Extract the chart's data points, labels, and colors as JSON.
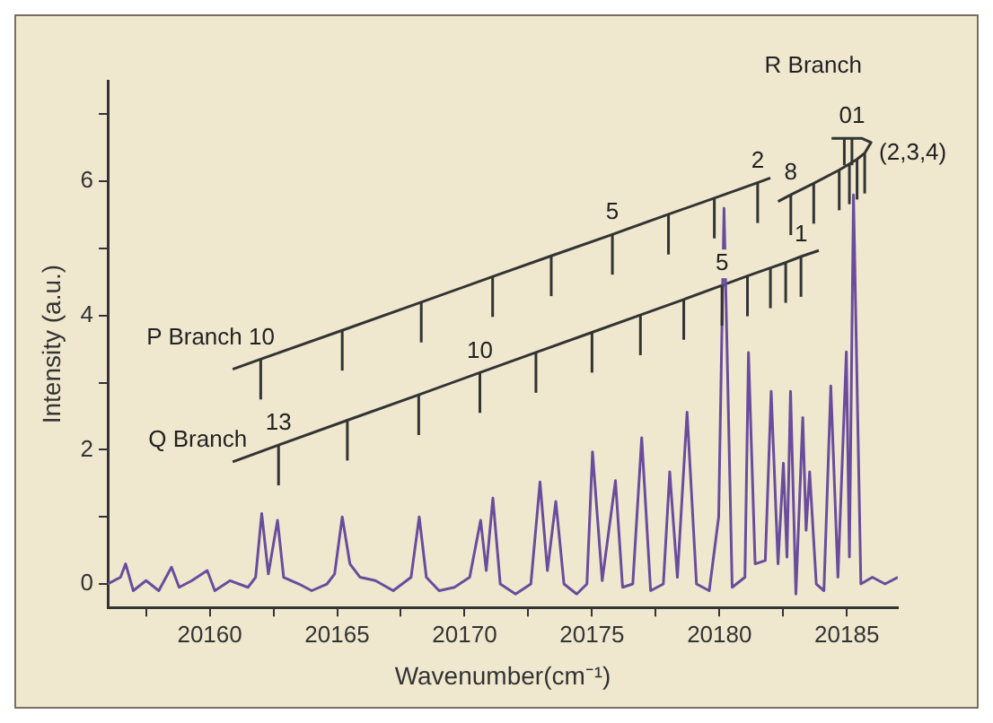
{
  "chart_data": {
    "type": "line",
    "xlabel": "Wavenumber(cm⁻¹)",
    "ylabel": "Intensity (a.u.)",
    "xlim": [
      20156,
      20187
    ],
    "ylim": [
      -0.35,
      7.5
    ],
    "xticks": [
      {
        "value": 20157.5,
        "label": null
      },
      20160,
      {
        "value": 20162.5,
        "label": null
      },
      20165,
      {
        "value": 20167.5,
        "label": null
      },
      20170,
      {
        "value": 20172.5,
        "label": null
      },
      20175,
      {
        "value": 20177.5,
        "label": null
      },
      20180,
      {
        "value": 20182.5,
        "label": null
      },
      20185
    ],
    "yticks": [
      0,
      {
        "value": 1,
        "label": null
      },
      2,
      {
        "value": 3,
        "label": null
      },
      4,
      {
        "value": 5,
        "label": null
      },
      6,
      {
        "value": 7,
        "label": null
      }
    ],
    "series": [
      {
        "color": "#6a4c9c",
        "x": [
          20156.0,
          20156.5,
          20156.7,
          20157.0,
          20157.5,
          20158.0,
          20158.5,
          20158.8,
          20159.3,
          20159.9,
          20160.2,
          20160.8,
          20161.5,
          20161.8,
          20162.04,
          20162.3,
          20162.66,
          20162.9,
          20163.5,
          20164.0,
          20164.6,
          20164.9,
          20165.2,
          20165.5,
          20165.9,
          20166.5,
          20167.2,
          20167.9,
          20168.22,
          20168.5,
          20169.0,
          20169.6,
          20170.2,
          20170.63,
          20170.85,
          20171.11,
          20171.4,
          20172.0,
          20172.6,
          20172.96,
          20173.25,
          20173.58,
          20173.9,
          20174.4,
          20174.8,
          20175.02,
          20175.4,
          20175.92,
          20176.2,
          20176.6,
          20176.95,
          20177.3,
          20177.8,
          20178.05,
          20178.35,
          20178.73,
          20179.1,
          20179.6,
          20179.97,
          20180.18,
          20180.5,
          20181.0,
          20181.14,
          20181.4,
          20181.8,
          20182.03,
          20182.3,
          20182.51,
          20182.65,
          20182.79,
          20183.0,
          20183.27,
          20183.4,
          20183.54,
          20183.8,
          20184.1,
          20184.37,
          20184.65,
          20184.98,
          20185.1,
          20185.26,
          20185.55,
          20186.0,
          20186.5,
          20187.0
        ],
        "values": [
          0.0,
          0.1,
          0.3,
          -0.1,
          0.05,
          -0.1,
          0.25,
          -0.05,
          0.05,
          0.2,
          -0.1,
          0.05,
          -0.05,
          0.1,
          1.05,
          0.15,
          0.95,
          0.1,
          0.0,
          -0.1,
          0.0,
          0.15,
          1.0,
          0.3,
          0.1,
          0.05,
          -0.1,
          0.1,
          1.0,
          0.1,
          -0.1,
          -0.05,
          0.1,
          0.95,
          0.2,
          1.28,
          0.0,
          -0.15,
          0.0,
          1.52,
          0.2,
          1.23,
          0.0,
          -0.15,
          0.0,
          1.97,
          0.05,
          1.54,
          -0.05,
          0.0,
          2.18,
          -0.1,
          0.0,
          1.67,
          0.1,
          2.56,
          0.0,
          -0.1,
          1.0,
          5.6,
          -0.05,
          0.1,
          3.45,
          0.3,
          0.35,
          2.87,
          0.3,
          1.8,
          0.4,
          2.87,
          -0.15,
          2.48,
          0.8,
          1.67,
          0.0,
          -0.1,
          2.95,
          0.1,
          3.46,
          0.4,
          5.8,
          0.0,
          0.1,
          0.0,
          0.1
        ]
      },
      {
        "color": "#333333",
        "x": [
          20160.9,
          20162.0,
          20165.2,
          20168.3,
          20171.1,
          20173.4,
          20175.8,
          20178.0,
          20179.8,
          20181.5,
          20182.0
        ],
        "values": [
          3.2,
          3.35,
          3.78,
          4.2,
          4.58,
          4.89,
          5.21,
          5.51,
          5.75,
          5.98,
          6.05
        ],
        "errors": [
          null,
          [
            2.75,
            3.35
          ],
          [
            3.18,
            3.78
          ],
          [
            3.6,
            4.2
          ],
          [
            3.98,
            4.58
          ],
          [
            4.29,
            4.89
          ],
          [
            4.61,
            5.21
          ],
          [
            4.91,
            5.51
          ],
          [
            5.15,
            5.75
          ],
          [
            5.38,
            5.98
          ],
          null
        ]
      },
      {
        "color": "#333333",
        "x": [
          20160.9,
          20162.7,
          20165.4,
          20168.2,
          20170.6,
          20172.8,
          20175.0,
          20176.9,
          20178.6,
          20180.1,
          20181.1,
          20182.0,
          20182.6,
          20183.2,
          20183.9
        ],
        "values": [
          1.82,
          2.07,
          2.44,
          2.82,
          3.15,
          3.45,
          3.75,
          4.01,
          4.24,
          4.45,
          4.59,
          4.71,
          4.79,
          4.88,
          4.97
        ],
        "errors": [
          null,
          [
            1.47,
            2.07
          ],
          [
            1.84,
            2.44
          ],
          [
            2.22,
            2.82
          ],
          [
            2.55,
            3.15
          ],
          [
            2.85,
            3.45
          ],
          [
            3.15,
            3.75
          ],
          [
            3.41,
            4.01
          ],
          [
            3.64,
            4.24
          ],
          [
            3.85,
            4.45
          ],
          [
            3.99,
            4.59
          ],
          [
            4.11,
            4.71
          ],
          [
            4.19,
            4.79
          ],
          [
            4.28,
            4.88
          ],
          null
        ]
      },
      {
        "color": "#333333",
        "x": [
          20182.3,
          20182.8,
          20183.7,
          20184.7,
          20185.1,
          20185.4,
          20185.7,
          20185.95,
          20185.6,
          20185.2,
          20184.9,
          20184.4
        ],
        "values": [
          5.7,
          5.8,
          5.97,
          6.17,
          6.26,
          6.33,
          6.42,
          6.58,
          6.64,
          6.64,
          6.64,
          6.64
        ],
        "errors": [
          null,
          [
            5.2,
            5.8
          ],
          [
            5.37,
            5.97
          ],
          [
            5.57,
            6.17
          ],
          [
            5.66,
            6.26
          ],
          [
            5.73,
            6.33
          ],
          [
            5.82,
            6.42
          ],
          null,
          null,
          [
            6.24,
            6.64
          ],
          [
            6.24,
            6.64
          ],
          null
        ]
      }
    ],
    "annotations": [
      {
        "text": "P Branch 10",
        "x": 20162.0,
        "y": 3.35
      },
      {
        "text": "5",
        "x": 20175.8,
        "y": 5.21
      },
      {
        "text": "2",
        "x": 20181.5,
        "y": 5.98
      },
      {
        "text": "Q Branch",
        "x": 20160.9,
        "y": 1.82
      },
      {
        "text": "13",
        "x": 20162.7,
        "y": 2.07
      },
      {
        "text": "10",
        "x": 20170.6,
        "y": 3.15
      },
      {
        "text": "5",
        "x": 20180.1,
        "y": 4.45
      },
      {
        "text": "1",
        "x": 20183.2,
        "y": 4.88
      },
      {
        "text": "8",
        "x": 20182.8,
        "y": 5.8
      },
      {
        "text": "01",
        "x": 20185.2,
        "y": 6.64
      },
      {
        "text": "(2,3,4)",
        "x": 20185.7,
        "y": 6.42
      },
      "R Branch"
    ]
  }
}
